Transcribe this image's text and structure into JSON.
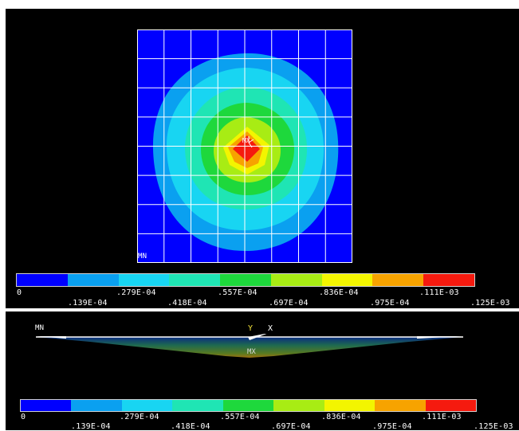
{
  "contour_plot": {
    "min_marker": "MN",
    "max_marker": "MX"
  },
  "beam_view": {
    "min_marker": "MN",
    "max_marker": "MX",
    "axis_y": "Y",
    "axis_x": "X"
  },
  "legend": {
    "colors": [
      "#0000ff",
      "#0aa0f0",
      "#18d5f2",
      "#1fe5b4",
      "#1ed83c",
      "#a8ec14",
      "#f3f500",
      "#f7a300",
      "#f51a0f"
    ],
    "upper_labels": [
      "0",
      ".279E-04",
      ".557E-04",
      ".836E-04",
      ".111E-03"
    ],
    "lower_labels": [
      ".139E-04",
      ".418E-04",
      ".697E-04",
      ".975E-04",
      ".125E-03"
    ]
  }
}
